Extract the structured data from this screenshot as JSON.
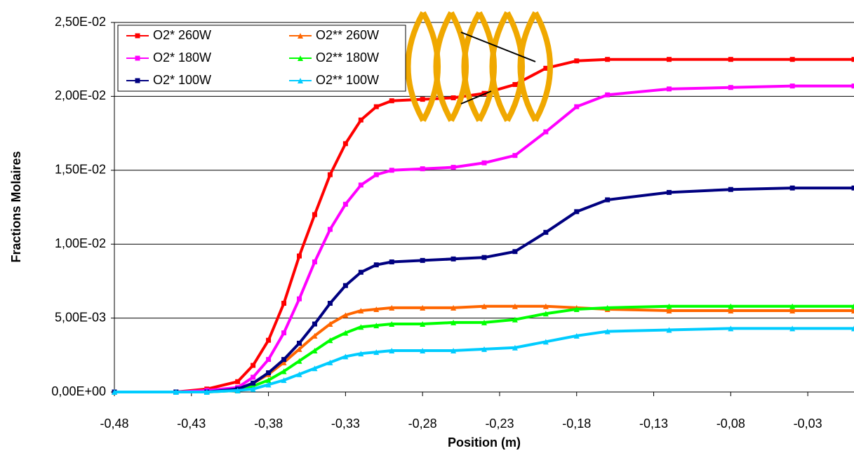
{
  "chart_data": {
    "type": "line",
    "x_label": "Position (m)",
    "y_label": "Fractions Molaires",
    "x": [
      -0.48,
      -0.44,
      -0.42,
      -0.4,
      -0.39,
      -0.38,
      -0.37,
      -0.36,
      -0.35,
      -0.34,
      -0.33,
      -0.32,
      -0.31,
      -0.3,
      -0.28,
      -0.26,
      -0.24,
      -0.22,
      -0.2,
      -0.18,
      -0.16,
      -0.12,
      -0.08,
      -0.04,
      0.0
    ],
    "series": [
      {
        "name": "O2* 260W",
        "color": "#ff0000",
        "marker": "square",
        "values": [
          0,
          0,
          0.0002,
          0.0007,
          0.0018,
          0.0035,
          0.006,
          0.0092,
          0.012,
          0.0147,
          0.0168,
          0.0184,
          0.0193,
          0.0197,
          0.0198,
          0.0199,
          0.0202,
          0.0208,
          0.0219,
          0.0224,
          0.0225,
          0.0225,
          0.0225,
          0.0225,
          0.0225
        ]
      },
      {
        "name": "O2** 260W",
        "color": "#ff6600",
        "marker": "triangle",
        "values": [
          0,
          0,
          0,
          0.0002,
          0.0006,
          0.0012,
          0.002,
          0.0029,
          0.0038,
          0.0046,
          0.0052,
          0.0055,
          0.0056,
          0.0057,
          0.0057,
          0.0057,
          0.0058,
          0.0058,
          0.0058,
          0.0057,
          0.0056,
          0.0055,
          0.0055,
          0.0055,
          0.0055
        ]
      },
      {
        "name": "O2* 180W",
        "color": "#ff00ff",
        "marker": "square",
        "values": [
          0,
          0,
          0.0001,
          0.0003,
          0.001,
          0.0022,
          0.004,
          0.0063,
          0.0088,
          0.011,
          0.0127,
          0.014,
          0.0147,
          0.015,
          0.0151,
          0.0152,
          0.0155,
          0.016,
          0.0176,
          0.0193,
          0.0201,
          0.0205,
          0.0206,
          0.0207,
          0.0207
        ]
      },
      {
        "name": "O2** 180W",
        "color": "#00ff00",
        "marker": "triangle",
        "values": [
          0,
          0,
          0,
          0.0001,
          0.0004,
          0.0008,
          0.0014,
          0.0021,
          0.0028,
          0.0035,
          0.004,
          0.0044,
          0.0045,
          0.0046,
          0.0046,
          0.0047,
          0.0047,
          0.0049,
          0.0053,
          0.0056,
          0.0057,
          0.0058,
          0.0058,
          0.0058,
          0.0058
        ]
      },
      {
        "name": "O2* 100W",
        "color": "#000080",
        "marker": "square",
        "values": [
          0,
          0,
          0,
          0.0002,
          0.0006,
          0.0013,
          0.0022,
          0.0033,
          0.0046,
          0.006,
          0.0072,
          0.0081,
          0.0086,
          0.0088,
          0.0089,
          0.009,
          0.0091,
          0.0095,
          0.0108,
          0.0122,
          0.013,
          0.0135,
          0.0137,
          0.0138,
          0.0138
        ]
      },
      {
        "name": "O2** 100W",
        "color": "#00ccff",
        "marker": "triangle",
        "values": [
          0,
          0,
          0,
          0.0001,
          0.0002,
          0.0005,
          0.0008,
          0.0012,
          0.0016,
          0.002,
          0.0024,
          0.0026,
          0.0027,
          0.0028,
          0.0028,
          0.0028,
          0.0029,
          0.003,
          0.0034,
          0.0038,
          0.0041,
          0.0042,
          0.0043,
          0.0043,
          0.0043
        ]
      }
    ],
    "xlim": [
      -0.48,
      0.0
    ],
    "xticks": [
      {
        "value": -0.48,
        "label": "-0,48"
      },
      {
        "value": -0.43,
        "label": "-0,43"
      },
      {
        "value": -0.38,
        "label": "-0,38"
      },
      {
        "value": -0.33,
        "label": "-0,33"
      },
      {
        "value": -0.28,
        "label": "-0,28"
      },
      {
        "value": -0.23,
        "label": "-0,23"
      },
      {
        "value": -0.18,
        "label": "-0,18"
      },
      {
        "value": -0.13,
        "label": "-0,13"
      },
      {
        "value": -0.08,
        "label": "-0,08"
      },
      {
        "value": -0.03,
        "label": "-0,03"
      }
    ],
    "ylim": [
      0,
      0.025
    ],
    "yticks": [
      {
        "value": 0,
        "label": "0,00E+00"
      },
      {
        "value": 0.005,
        "label": "5,00E-03"
      },
      {
        "value": 0.01,
        "label": "1,00E-02"
      },
      {
        "value": 0.015,
        "label": "1,50E-02"
      },
      {
        "value": 0.02,
        "label": "2,00E-02"
      },
      {
        "value": 0.025,
        "label": "2,50E-02"
      }
    ],
    "grid": true,
    "legend": "upper left"
  }
}
